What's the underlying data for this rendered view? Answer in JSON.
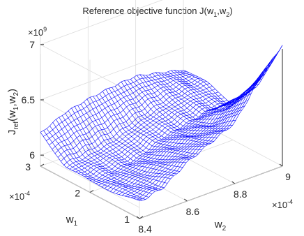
{
  "chart_data": {
    "type": "surface",
    "title": "Reference objective function J(w",
    "title_parts": {
      "prefix": "Reference objective function J(w",
      "sub1": "1",
      "mid": ",w",
      "sub2": "2",
      "suffix": ")"
    },
    "zlabel_parts": {
      "base": "J",
      "sub": "ref",
      "open": "(w",
      "sub1": "1",
      "comma": ",w",
      "sub2": "2",
      "close": ")"
    },
    "xlabel_parts": {
      "base": "w",
      "sub": "2"
    },
    "ylabel_parts": {
      "base": "w",
      "sub": "1"
    },
    "z_exponent": {
      "base": "×10",
      "exp": "9"
    },
    "x_exponent": {
      "base": "×10",
      "exp": "-4"
    },
    "y_exponent": {
      "base": "×10",
      "exp": "-4"
    },
    "x_axis": {
      "name": "w2",
      "range": [
        8.4,
        9.0
      ],
      "ticks": [
        8.4,
        8.6,
        8.8,
        9
      ],
      "tick_labels": [
        "8.4",
        "8.6",
        "8.8",
        "9"
      ]
    },
    "y_axis": {
      "name": "w1",
      "range": [
        1,
        3
      ],
      "ticks": [
        1,
        2,
        3
      ],
      "tick_labels": [
        "1",
        "2",
        "3"
      ]
    },
    "z_axis": {
      "name": "Jref",
      "range": [
        5.9,
        7.1
      ],
      "ticks": [
        6,
        6.5,
        7
      ],
      "tick_labels": [
        "6",
        "6.5",
        "7"
      ]
    },
    "grid": true,
    "surface_color": "#0000ff",
    "surface_samples": {
      "w2": [
        8.4,
        8.5,
        8.6,
        8.7,
        8.8,
        8.9,
        9.0
      ],
      "w1": [
        1.0,
        1.5,
        2.0,
        2.5,
        3.0
      ],
      "z": [
        [
          6.05,
          6.1,
          6.25,
          6.35,
          6.45,
          6.75,
          7.0
        ],
        [
          6.02,
          6.05,
          6.15,
          6.25,
          6.3,
          6.45,
          6.5
        ],
        [
          6.0,
          6.02,
          6.05,
          6.15,
          6.2,
          6.25,
          6.22
        ],
        [
          6.02,
          6.05,
          6.1,
          6.18,
          6.25,
          6.3,
          6.3
        ],
        [
          6.2,
          6.3,
          6.35,
          6.38,
          6.4,
          6.35,
          6.3
        ]
      ]
    }
  }
}
